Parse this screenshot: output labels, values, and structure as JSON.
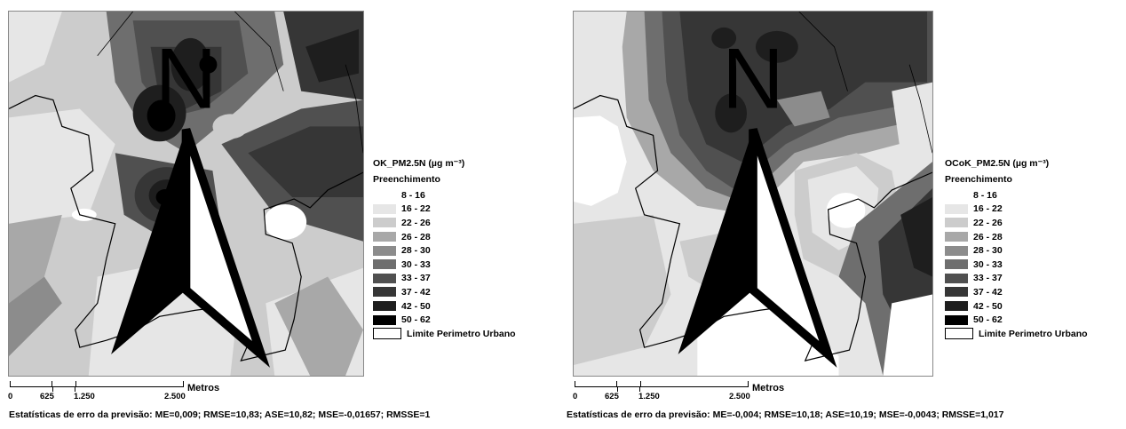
{
  "panels": [
    {
      "legend_title": "OK_PM2.5N (µg m⁻³)",
      "legend_subtitle": "Preenchimento",
      "scale_labels": [
        "0",
        "625",
        "1.250",
        "2.500"
      ],
      "scale_unit": "Metros",
      "boundary_label": "Limite Perimetro Urbano",
      "stats": "Estatísticas de erro da previsão: ME=0,009; RMSE=10,83; ASE=10,82; MSE=-0,01657; RMSSE=1"
    },
    {
      "legend_title": "OCoK_PM2.5N (µg m⁻³)",
      "legend_subtitle": "Preenchimento",
      "scale_labels": [
        "0",
        "625",
        "1.250",
        "2.500"
      ],
      "scale_unit": "Metros",
      "boundary_label": "Limite Perimetro Urbano",
      "stats": "Estatísticas de erro da previsão: ME=-0,004; RMSE=10,18; ASE=10,19; MSE=-0,0043; RMSSE=1,017"
    }
  ],
  "classes": [
    {
      "label": "8 - 16",
      "color": "#ffffff"
    },
    {
      "label": "16 - 22",
      "color": "#e6e6e6"
    },
    {
      "label": "22 - 26",
      "color": "#cccccc"
    },
    {
      "label": "26 - 28",
      "color": "#a8a8a8"
    },
    {
      "label": "28 - 30",
      "color": "#8c8c8c"
    },
    {
      "label": "30 - 33",
      "color": "#6e6e6e"
    },
    {
      "label": "33 - 37",
      "color": "#505050"
    },
    {
      "label": "37 - 42",
      "color": "#363636"
    },
    {
      "label": "42 - 50",
      "color": "#1e1e1e"
    },
    {
      "label": "50 - 62",
      "color": "#000000"
    }
  ],
  "north_label": "N"
}
